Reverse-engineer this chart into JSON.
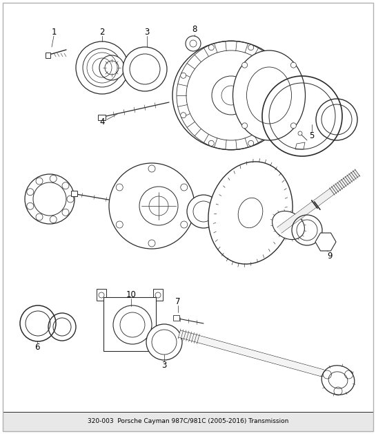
{
  "title": "320-003  Porsche Cayman 987C/981C (2005-2016) Transmission",
  "bg_color": "#ffffff",
  "border_color": "#b0b0b0",
  "line_color": "#2a2a2a",
  "label_color": "#000000",
  "fig_width": 5.45,
  "fig_height": 6.28,
  "dpi": 100,
  "font_size_labels": 8.5,
  "font_size_title": 6.5,
  "title_bg": "#e8e8e8"
}
